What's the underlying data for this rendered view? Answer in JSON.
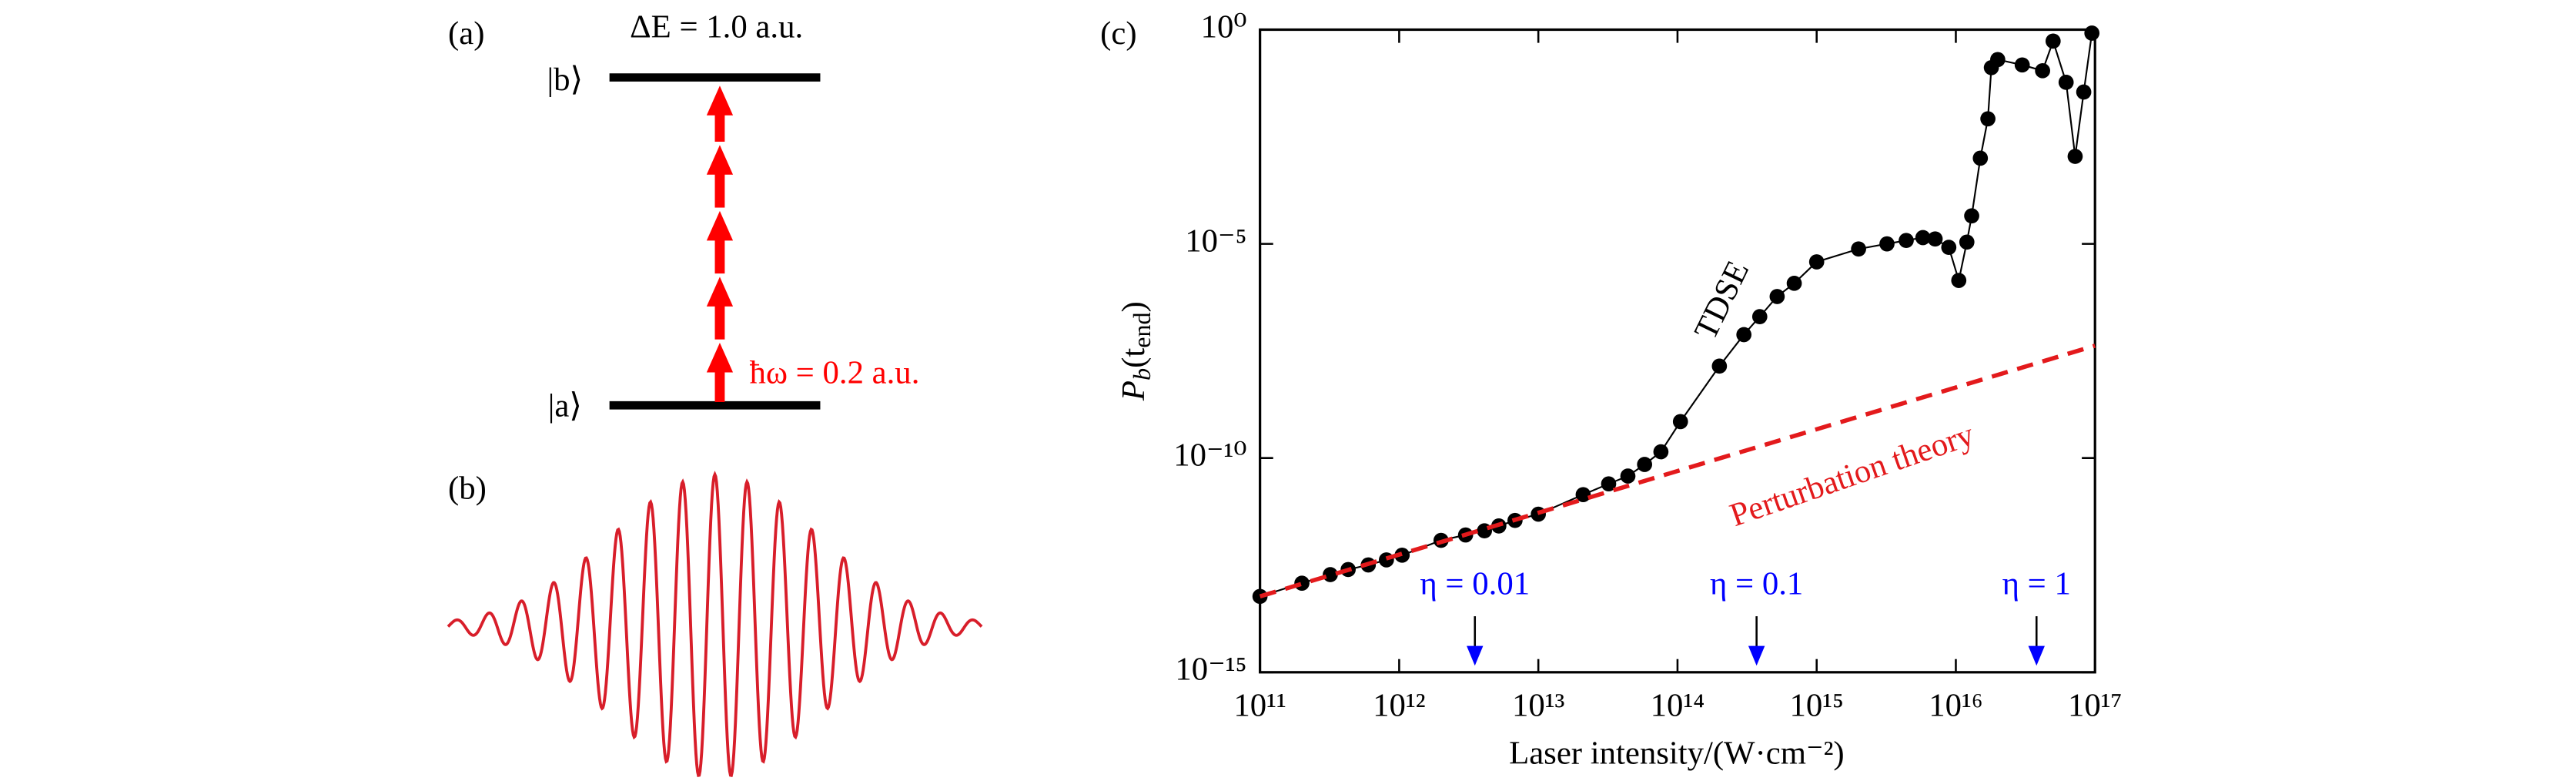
{
  "panel_a": {
    "label": "(a)",
    "energy_gap": "ΔE = 1.0 a.u.",
    "upper_state": "|b⟩",
    "lower_state": "|a⟩",
    "photon": "ħω = 0.2 a.u."
  },
  "panel_b": {
    "label": "(b)"
  },
  "chart_data": {
    "type": "line",
    "panel_label": "(c)",
    "xlabel": "Laser intensity/(W·cm⁻²)",
    "ylabel_parts": [
      "P",
      "b",
      "(t",
      "end",
      ")"
    ],
    "log_x": true,
    "log_y": true,
    "xlim": [
      100000000000.0,
      1e+17
    ],
    "ylim": [
      1e-15,
      1
    ],
    "xticks": [
      {
        "value": 100000000000.0,
        "label": "10¹¹"
      },
      {
        "value": 1000000000000.0,
        "label": "10¹²"
      },
      {
        "value": 10000000000000.0,
        "label": "10¹³"
      },
      {
        "value": 100000000000000.0,
        "label": "10¹⁴"
      },
      {
        "value": 1000000000000000.0,
        "label": "10¹⁵"
      },
      {
        "value": 1e+16,
        "label": "10¹⁶"
      },
      {
        "value": 1e+17,
        "label": "10¹⁷"
      }
    ],
    "yticks": [
      {
        "value": 1e-15,
        "label": "10⁻¹⁵"
      },
      {
        "value": 1e-10,
        "label": "10⁻¹⁰"
      },
      {
        "value": 1e-05,
        "label": "10⁻⁵"
      },
      {
        "value": 1,
        "label": "10⁰"
      }
    ],
    "series": [
      {
        "name": "TDSE",
        "color": "#000000",
        "markers": true,
        "x": [
          100000000000.0,
          200000000000.0,
          320000000000.0,
          430000000000.0,
          600000000000.0,
          810000000000.0,
          1050000000000.0,
          2000000000000.0,
          3000000000000.0,
          4100000000000.0,
          5200000000000.0,
          6800000000000.0,
          10000000000000.0,
          21000000000000.0,
          32000000000000.0,
          44000000000000.0,
          58000000000000.0,
          76000000000000.0,
          105000000000000.0,
          200000000000000.0,
          300000000000000.0,
          390000000000000.0,
          520000000000000.0,
          690000000000000.0,
          1000000000000000.0,
          2000000000000000.0,
          3200000000000000.0,
          4400000000000000.0,
          5800000000000000.0,
          7100000000000000.0,
          8900000000000000.0,
          1.05e+16,
          1.2e+16,
          1.3e+16,
          1.5e+16,
          1.7e+16,
          1.8e+16,
          2e+16,
          3e+16,
          4.2e+16,
          5e+16,
          6.2e+16,
          7.2e+16,
          8.3e+16,
          9.5e+16
        ],
        "values": [
          5.9e-14,
          1.2e-13,
          1.9e-13,
          2.5e-13,
          3.2e-13,
          4.2e-13,
          5.4e-13,
          1.2e-12,
          1.6e-12,
          2e-12,
          2.6e-12,
          3.5e-12,
          4.9e-12,
          1.4e-11,
          2.5e-11,
          3.8e-11,
          7.1e-11,
          1.4e-10,
          7.1e-10,
          1.4e-08,
          7.6e-08,
          2e-07,
          5.9e-07,
          1.2e-06,
          3.8e-06,
          7.6e-06,
          1e-05,
          1.2e-05,
          1.4e-05,
          1.3e-05,
          8.3e-06,
          1.4e-06,
          1.1e-05,
          4.5e-05,
          0.001,
          0.0083,
          0.13,
          0.2,
          0.15,
          0.11,
          0.54,
          0.059,
          0.0011,
          0.035,
          0.83
        ]
      },
      {
        "name": "Perturbation theory",
        "color": "#e31a1c",
        "dashed": true,
        "x": [
          100000000000.0,
          1e+17
        ],
        "values": [
          5.9e-14,
          4.2e-08
        ]
      }
    ],
    "arrows": [
      {
        "label": "η = 0.01",
        "x": 3500000000000.0
      },
      {
        "label": "η = 0.1",
        "x": 370000000000000.0
      },
      {
        "label": "η = 1",
        "x": 3.8e+16
      }
    ]
  }
}
